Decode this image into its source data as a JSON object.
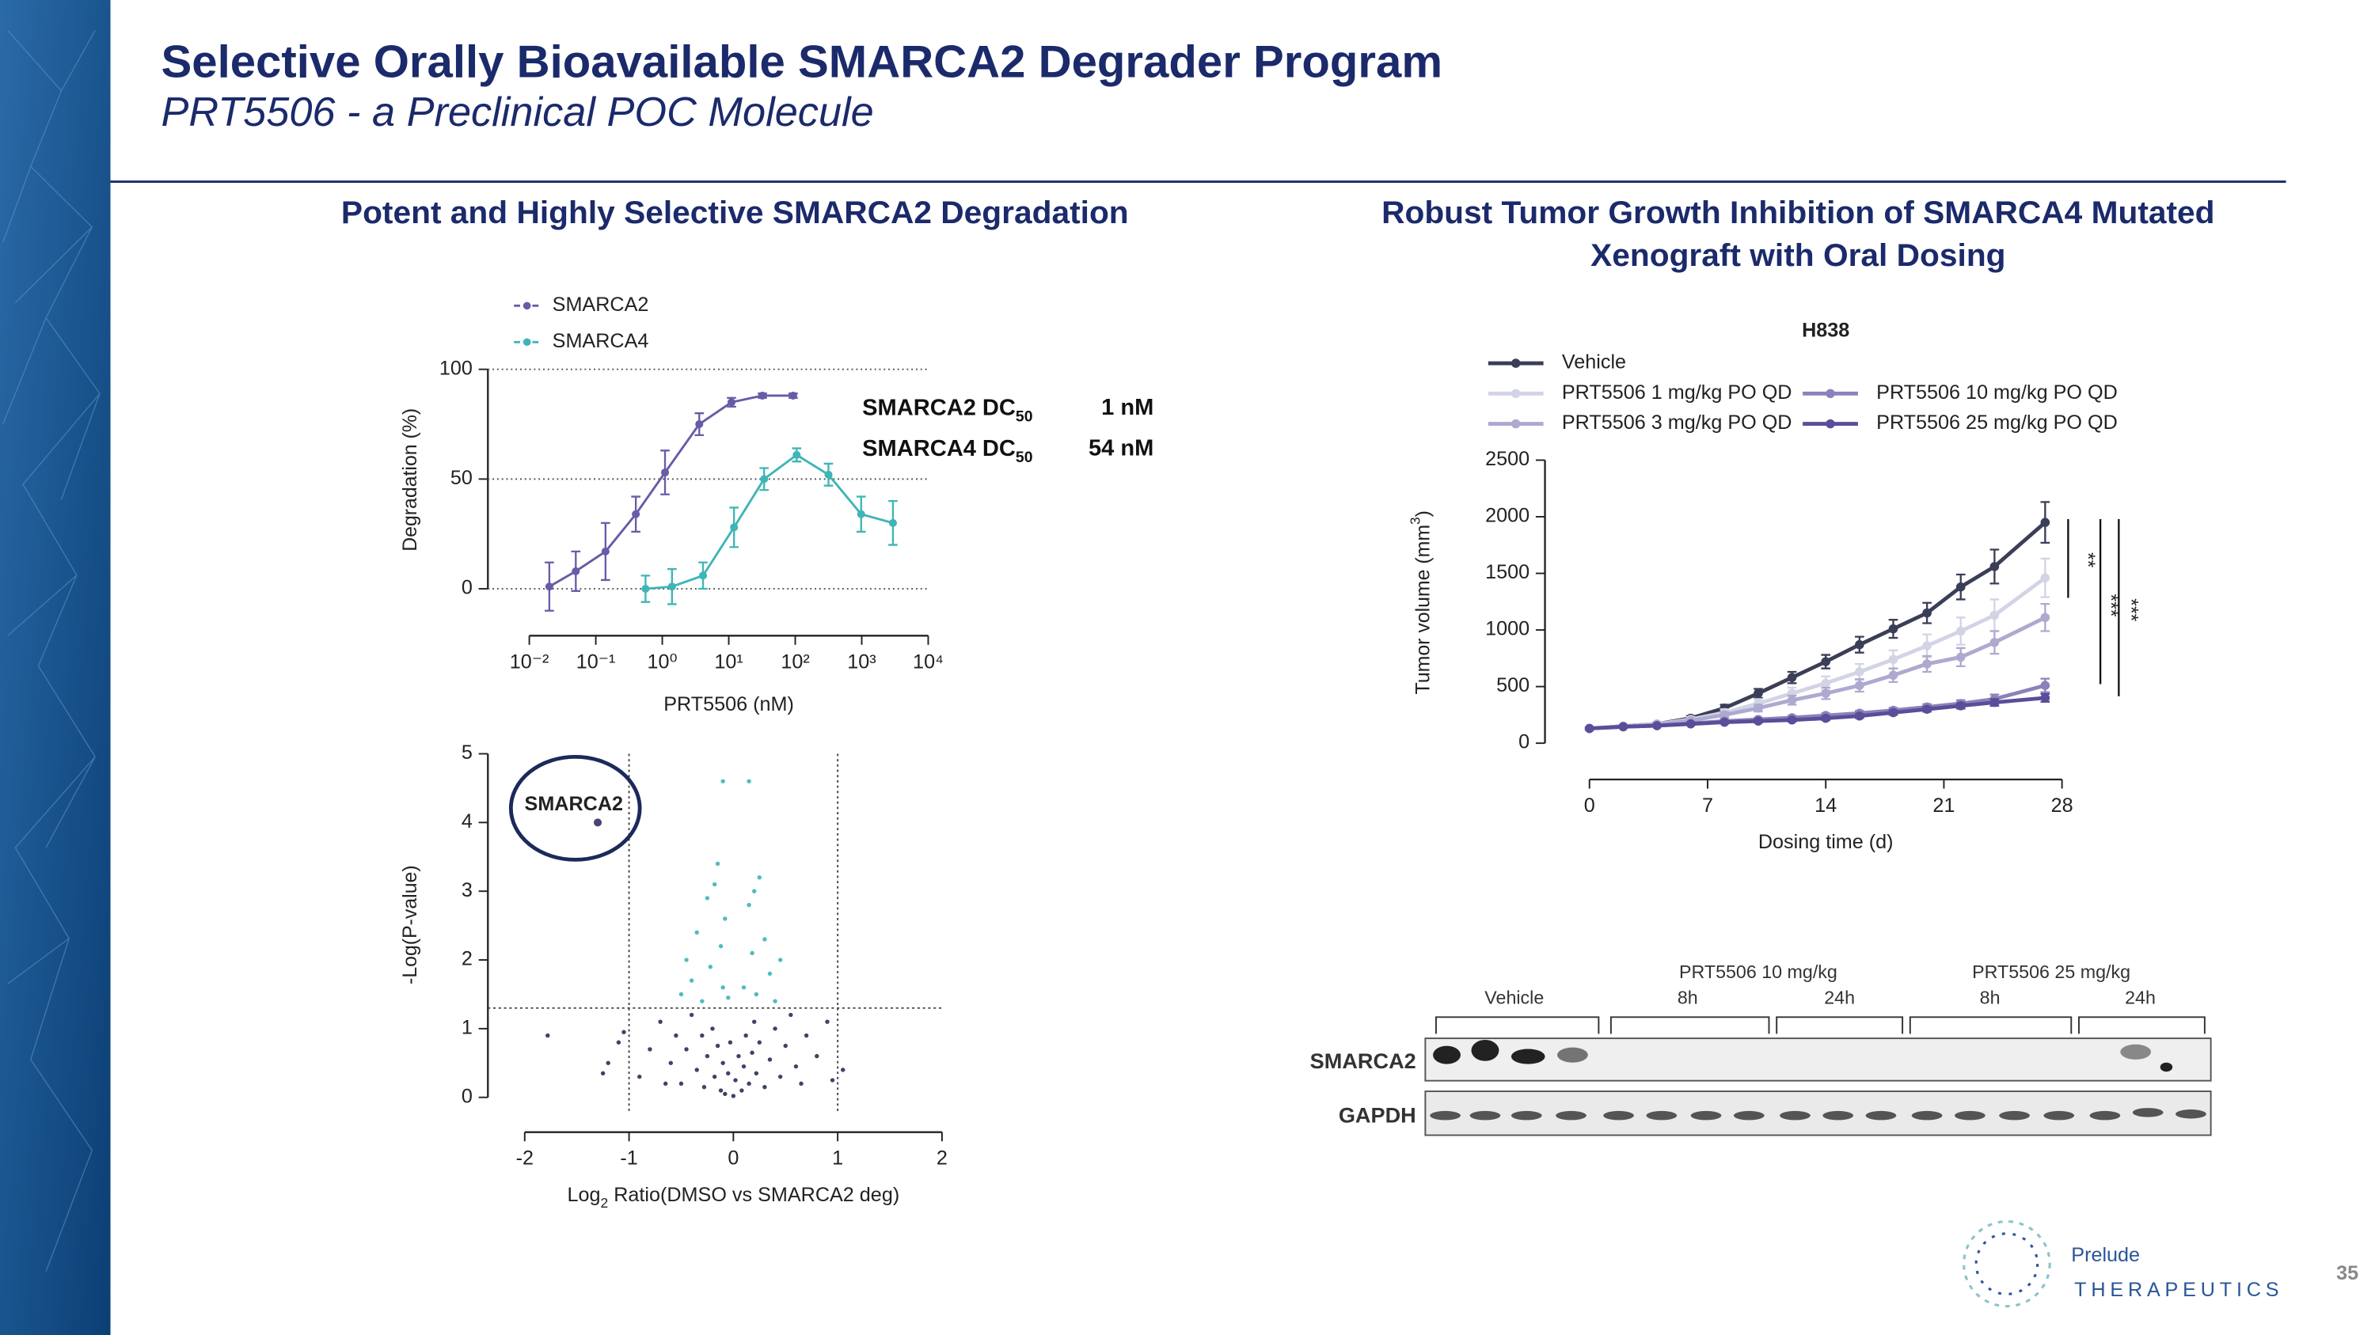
{
  "header": {
    "title": "Selective Orally Bioavailable SMARCA2 Degrader Program",
    "subtitle": "PRT5506 - a Preclinical POC Molecule"
  },
  "panels": {
    "left_title": "Potent and Highly Selective SMARCA2 Degradation",
    "right_title": [
      "Robust Tumor Growth Inhibition of SMARCA4 Mutated",
      "Xenograft with Oral Dosing"
    ]
  },
  "chart_data": [
    {
      "type": "scatter",
      "x_scale": "log",
      "curve": true,
      "grid": true,
      "legend": "top-left",
      "y_label": "Degradation (%)",
      "x_label": "PRT5506 (nM)",
      "xlim": [
        0.01,
        10000
      ],
      "xticks": [
        {
          "value": 0.01,
          "label": "10⁻²"
        },
        {
          "value": 0.1,
          "label": "10⁻¹"
        },
        {
          "value": 1,
          "label": "10⁰"
        },
        {
          "value": 10,
          "label": "10¹"
        },
        {
          "value": 100,
          "label": "10²"
        },
        {
          "value": 1000,
          "label": "10³"
        },
        {
          "value": 10000,
          "label": "10⁴"
        }
      ],
      "ylim": [
        0,
        100
      ],
      "yticks": [
        0,
        50,
        100
      ],
      "series": [
        {
          "name": "SMARCA2",
          "color": "#6a5aa8",
          "x": [
            0.02,
            0.05,
            0.14,
            0.4,
            1.1,
            3.6,
            11,
            32,
            93
          ],
          "values": [
            1,
            8,
            17,
            34,
            53,
            75,
            85,
            88,
            88
          ],
          "errors": [
            11,
            9,
            13,
            8,
            10,
            5,
            2,
            1,
            1
          ]
        },
        {
          "name": "SMARCA4",
          "color": "#3fb5b5",
          "x": [
            0.56,
            1.4,
            4.1,
            12,
            34,
            105,
            316,
            980,
            2950
          ],
          "values": [
            0,
            1,
            6,
            28,
            50,
            61,
            52,
            34,
            30
          ],
          "errors": [
            6,
            8,
            6,
            9,
            5,
            3,
            5,
            8,
            10
          ]
        }
      ],
      "annotations": [
        {
          "label": "SMARCA2 DC",
          "sub": "50",
          "value": "1 nM"
        },
        {
          "label": "SMARCA4 DC",
          "sub": "50",
          "value": "54 nM"
        }
      ]
    },
    {
      "type": "scatter",
      "y_label": "-Log(P-value)",
      "x_label": {
        "text": "Log",
        "sub": "2",
        "rest": " Ratio(DMSO vs SMARCA2 deg)"
      },
      "xlim": [
        -2,
        2
      ],
      "xticks": [
        -2,
        -1,
        0,
        1,
        2
      ],
      "ylim": [
        0,
        5
      ],
      "yticks": [
        0,
        1,
        2,
        3,
        4,
        5
      ],
      "reference_lines": {
        "x": [
          -1,
          1
        ],
        "y": [
          1.3
        ]
      },
      "annotation": "SMARCA2",
      "series": [
        {
          "color": "#3c4466",
          "x": [
            -1.78,
            -1.1,
            -1.2,
            -1.05,
            -0.9,
            -0.8,
            -0.7,
            -0.6,
            -0.55,
            -0.5,
            -0.45,
            -0.4,
            -0.35,
            -0.3,
            -0.28,
            -0.25,
            -0.2,
            -0.18,
            -0.15,
            -0.12,
            -0.1,
            -0.08,
            -0.05,
            -0.03,
            0,
            0.02,
            0.05,
            0.08,
            0.1,
            0.12,
            0.15,
            0.18,
            0.2,
            0.22,
            0.25,
            0.3,
            0.35,
            0.4,
            0.45,
            0.5,
            0.55,
            0.6,
            0.7,
            0.8,
            0.9,
            1.05,
            0.95,
            -0.65,
            0.65,
            -1.25
          ],
          "values": [
            0.9,
            0.8,
            0.5,
            0.95,
            0.3,
            0.7,
            1.1,
            0.5,
            0.9,
            0.2,
            0.7,
            1.2,
            0.4,
            0.9,
            0.15,
            0.6,
            1.0,
            0.3,
            0.75,
            0.1,
            0.5,
            0.05,
            0.35,
            0.8,
            0.02,
            0.25,
            0.6,
            0.1,
            0.45,
            0.9,
            0.2,
            0.65,
            1.1,
            0.35,
            0.8,
            0.15,
            0.55,
            1.0,
            0.3,
            0.75,
            1.2,
            0.45,
            0.9,
            0.6,
            1.1,
            0.4,
            0.25,
            0.2,
            0.2,
            0.35
          ]
        },
        {
          "color": "#4fbcbc",
          "x": [
            -0.5,
            -0.45,
            -0.4,
            -0.35,
            -0.3,
            -0.25,
            -0.22,
            -0.18,
            -0.15,
            -0.12,
            -0.1,
            -0.08,
            -0.05,
            0.1,
            0.15,
            0.18,
            0.2,
            0.22,
            0.25,
            0.3,
            0.35,
            0.4,
            0.45,
            -0.1,
            0.15
          ],
          "values": [
            1.5,
            2.0,
            1.7,
            2.4,
            1.4,
            2.9,
            1.9,
            3.1,
            3.4,
            2.2,
            1.6,
            2.6,
            1.45,
            1.6,
            2.8,
            2.1,
            3.0,
            1.5,
            3.2,
            2.3,
            1.8,
            1.4,
            2.0,
            4.6,
            4.6
          ]
        },
        {
          "color": "#4a4373",
          "x": [
            -1.3
          ],
          "values": [
            4.0
          ]
        }
      ]
    },
    {
      "type": "line",
      "title": "H838",
      "y_label": {
        "text": "Tumor volume (mm",
        "sup": "3",
        "rest": ")"
      },
      "x_label": "Dosing time (d)",
      "xlim": [
        0,
        28
      ],
      "xticks": [
        0,
        7,
        14,
        21,
        28
      ],
      "ylim": [
        0,
        2500
      ],
      "yticks": [
        0,
        500,
        1000,
        1500,
        2000,
        2500
      ],
      "x": [
        0,
        2,
        4,
        6,
        8,
        10,
        12,
        14,
        16,
        18,
        20,
        22,
        24,
        27
      ],
      "series": [
        {
          "name": "Vehicle",
          "color": "#3a3e57",
          "values": [
            130,
            150,
            170,
            220,
            310,
            440,
            580,
            720,
            870,
            1010,
            1150,
            1380,
            1560,
            1950
          ],
          "errors": [
            10,
            10,
            15,
            20,
            30,
            40,
            50,
            60,
            70,
            80,
            90,
            110,
            150,
            180
          ]
        },
        {
          "name": "PRT5506 1 mg/kg PO QD",
          "color": "#d2d4e6",
          "values": [
            130,
            150,
            170,
            210,
            270,
            350,
            440,
            530,
            630,
            740,
            860,
            990,
            1130,
            1460
          ],
          "errors": [
            10,
            10,
            15,
            20,
            30,
            40,
            50,
            60,
            70,
            80,
            100,
            120,
            140,
            170
          ]
        },
        {
          "name": "PRT5506 3 mg/kg PO QD",
          "color": "#aea9cf",
          "values": [
            130,
            150,
            165,
            200,
            250,
            310,
            380,
            440,
            510,
            600,
            700,
            760,
            890,
            1110
          ],
          "errors": [
            10,
            10,
            12,
            15,
            25,
            30,
            40,
            50,
            55,
            60,
            70,
            80,
            100,
            120
          ]
        },
        {
          "name": "PRT5506 10 mg/kg  PO QD",
          "color": "#8b82bb",
          "values": [
            130,
            145,
            155,
            175,
            195,
            210,
            225,
            245,
            265,
            290,
            320,
            350,
            390,
            510
          ],
          "errors": [
            8,
            8,
            10,
            10,
            12,
            14,
            16,
            18,
            20,
            22,
            25,
            30,
            40,
            60
          ]
        },
        {
          "name": "PRT5506 25 mg/kg  PO QD",
          "color": "#5a4d9a",
          "values": [
            130,
            145,
            155,
            170,
            185,
            195,
            205,
            220,
            240,
            270,
            300,
            330,
            360,
            400
          ],
          "errors": [
            8,
            8,
            10,
            10,
            12,
            12,
            14,
            16,
            18,
            20,
            22,
            25,
            30,
            35
          ]
        }
      ],
      "significance": [
        "**",
        "***",
        "***"
      ]
    }
  ],
  "blot": {
    "treatments": [
      "PRT5506 10 mg/kg",
      "PRT5506 25 mg/kg"
    ],
    "lanes": [
      "Vehicle",
      "8h",
      "24h",
      "8h",
      "24h"
    ],
    "rows": [
      "SMARCA2",
      "GAPDH"
    ]
  },
  "footer": {
    "logo": "Prelude",
    "logo_sub": "THERAPEUTICS",
    "page": 35
  }
}
